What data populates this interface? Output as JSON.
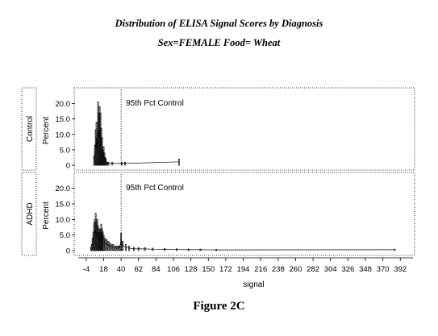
{
  "title": "Distribution of ELISA Signal Scores by Diagnosis",
  "subtitle": "Sex=FEMALE  Food= Wheat",
  "caption": "Figure 2C",
  "chart_data": [
    {
      "type": "bar",
      "panel": "Control",
      "ylabel": "Percent",
      "xlabel": "signal",
      "ylim": [
        0,
        22.5
      ],
      "yticks": [
        0,
        5.0,
        10.0,
        15.0,
        20.0
      ],
      "xticks": [
        -4,
        18,
        40,
        62,
        84,
        106,
        128,
        150,
        172,
        194,
        216,
        238,
        260,
        282,
        304,
        326,
        348,
        370,
        392
      ],
      "annotation": "95th Pct Control",
      "reference_line_x": 40,
      "bins": [
        {
          "x": 6,
          "value": 3.0
        },
        {
          "x": 7,
          "value": 6.5
        },
        {
          "x": 8,
          "value": 11.5
        },
        {
          "x": 9,
          "value": 14.0
        },
        {
          "x": 10,
          "value": 9.0
        },
        {
          "x": 11,
          "value": 20.5
        },
        {
          "x": 12,
          "value": 17.0
        },
        {
          "x": 13,
          "value": 19.0
        },
        {
          "x": 14,
          "value": 17.0
        },
        {
          "x": 15,
          "value": 12.0
        },
        {
          "x": 16,
          "value": 9.0
        },
        {
          "x": 17,
          "value": 5.0
        },
        {
          "x": 18,
          "value": 6.0
        },
        {
          "x": 19,
          "value": 4.0
        },
        {
          "x": 20,
          "value": 2.5
        },
        {
          "x": 21,
          "value": 2.0
        },
        {
          "x": 22,
          "value": 1.0
        },
        {
          "x": 24,
          "value": 1.0
        },
        {
          "x": 29,
          "value": 1.0
        },
        {
          "x": 41,
          "value": 1.0
        },
        {
          "x": 45,
          "value": 1.0
        },
        {
          "x": 113,
          "value": 2.0
        }
      ]
    },
    {
      "type": "bar",
      "panel": "ADHD",
      "ylabel": "Percent",
      "xlabel": "signal",
      "ylim": [
        0,
        22.5
      ],
      "yticks": [
        0,
        5.0,
        10.0,
        15.0,
        20.0
      ],
      "xticks": [
        -4,
        18,
        40,
        62,
        84,
        106,
        128,
        150,
        172,
        194,
        216,
        238,
        260,
        282,
        304,
        326,
        348,
        370,
        392
      ],
      "annotation": "95th Pct Control",
      "reference_line_x": 40,
      "bins": [
        {
          "x": 2,
          "value": 1.0
        },
        {
          "x": 3,
          "value": 2.0
        },
        {
          "x": 4,
          "value": 4.0
        },
        {
          "x": 5,
          "value": 6.0
        },
        {
          "x": 6,
          "value": 9.0
        },
        {
          "x": 7,
          "value": 10.0
        },
        {
          "x": 8,
          "value": 12.0
        },
        {
          "x": 9,
          "value": 9.0
        },
        {
          "x": 10,
          "value": 10.0
        },
        {
          "x": 11,
          "value": 8.0
        },
        {
          "x": 12,
          "value": 7.0
        },
        {
          "x": 13,
          "value": 6.0
        },
        {
          "x": 14,
          "value": 7.0
        },
        {
          "x": 15,
          "value": 8.5
        },
        {
          "x": 16,
          "value": 7.0
        },
        {
          "x": 17,
          "value": 6.0
        },
        {
          "x": 18,
          "value": 5.0
        },
        {
          "x": 20,
          "value": 4.0
        },
        {
          "x": 22,
          "value": 3.5
        },
        {
          "x": 24,
          "value": 3.0
        },
        {
          "x": 26,
          "value": 2.5
        },
        {
          "x": 28,
          "value": 2.0
        },
        {
          "x": 30,
          "value": 2.0
        },
        {
          "x": 32,
          "value": 1.5
        },
        {
          "x": 34,
          "value": 1.5
        },
        {
          "x": 36,
          "value": 1.5
        },
        {
          "x": 38,
          "value": 1.5
        },
        {
          "x": 40,
          "value": 5.5
        },
        {
          "x": 42,
          "value": 3.0
        },
        {
          "x": 46,
          "value": 2.0
        },
        {
          "x": 50,
          "value": 1.5
        },
        {
          "x": 56,
          "value": 1.0
        },
        {
          "x": 62,
          "value": 1.0
        },
        {
          "x": 70,
          "value": 1.0
        },
        {
          "x": 80,
          "value": 0.8
        },
        {
          "x": 95,
          "value": 0.7
        },
        {
          "x": 110,
          "value": 0.6
        },
        {
          "x": 125,
          "value": 0.5
        },
        {
          "x": 140,
          "value": 0.5
        },
        {
          "x": 160,
          "value": 0.4
        },
        {
          "x": 385,
          "value": 0.5
        }
      ]
    }
  ]
}
